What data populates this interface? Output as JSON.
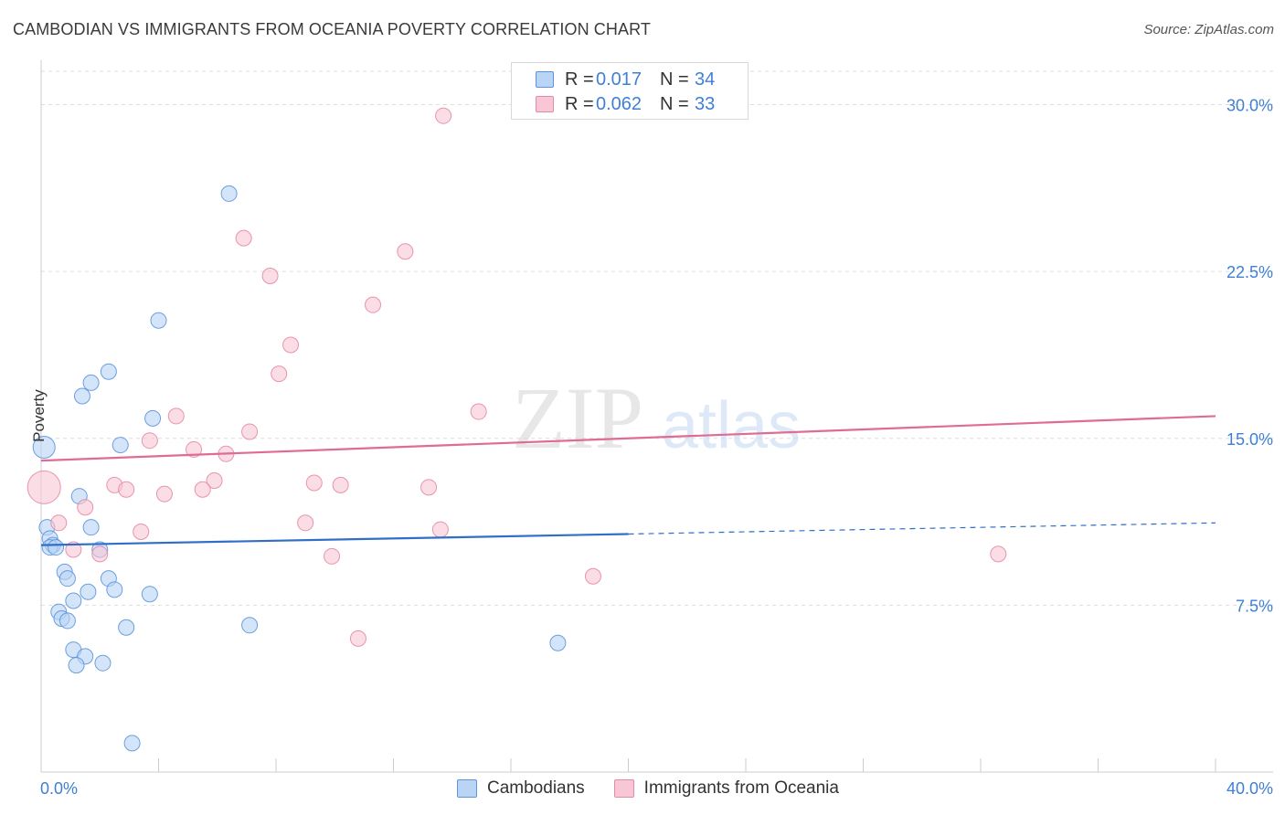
{
  "title": "CAMBODIAN VS IMMIGRANTS FROM OCEANIA POVERTY CORRELATION CHART",
  "source": "Source: ZipAtlas.com",
  "watermark": {
    "zip": "ZIP",
    "atlas": "atlas"
  },
  "legend_top": [
    {
      "r_label": "R =",
      "r_value": "0.017",
      "n_label": "N =",
      "n_value": "34"
    },
    {
      "r_label": "R =",
      "r_value": "0.062",
      "n_label": "N =",
      "n_value": "33"
    }
  ],
  "legend_bottom": [
    "Cambodians",
    "Immigrants from Oceania"
  ],
  "colors": {
    "blue_fill": "#b9d4f5",
    "blue_stroke": "#5d95dc",
    "blue_line": "#2f6fc8",
    "pink_fill": "#f8c6d4",
    "pink_stroke": "#e58aa6",
    "pink_line": "#e06b93",
    "grid": "#dddddd",
    "axis_text": "#3f7fd6"
  },
  "chart_data": {
    "type": "scatter",
    "title": "CAMBODIAN VS IMMIGRANTS FROM OCEANIA POVERTY CORRELATION CHART",
    "xlabel": "",
    "ylabel": "Poverty",
    "xlim": [
      0,
      40
    ],
    "ylim": [
      0,
      31.5
    ],
    "y_ticks": [
      7.5,
      15.0,
      22.5,
      30.0
    ],
    "y_tick_labels": [
      "7.5%",
      "15.0%",
      "22.5%",
      "30.0%"
    ],
    "x_tick_labels": [
      "0.0%",
      "40.0%"
    ],
    "series": [
      {
        "name": "Cambodians",
        "color": "blue",
        "points": [
          [
            6.4,
            26.0
          ],
          [
            4.0,
            20.3
          ],
          [
            2.3,
            18.0
          ],
          [
            1.7,
            17.5
          ],
          [
            1.4,
            16.9
          ],
          [
            3.8,
            15.9
          ],
          [
            0.1,
            14.6
          ],
          [
            2.7,
            14.7
          ],
          [
            1.3,
            12.4
          ],
          [
            0.2,
            11.0
          ],
          [
            1.7,
            11.0
          ],
          [
            0.3,
            10.5
          ],
          [
            0.4,
            10.2
          ],
          [
            0.3,
            10.1
          ],
          [
            0.5,
            10.1
          ],
          [
            2.0,
            10.0
          ],
          [
            0.8,
            9.0
          ],
          [
            0.9,
            8.7
          ],
          [
            2.3,
            8.7
          ],
          [
            2.5,
            8.2
          ],
          [
            1.6,
            8.1
          ],
          [
            3.7,
            8.0
          ],
          [
            1.1,
            7.7
          ],
          [
            0.6,
            7.2
          ],
          [
            0.7,
            6.9
          ],
          [
            0.9,
            6.8
          ],
          [
            2.9,
            6.5
          ],
          [
            7.1,
            6.6
          ],
          [
            17.6,
            5.8
          ],
          [
            1.1,
            5.5
          ],
          [
            1.5,
            5.2
          ],
          [
            2.1,
            4.9
          ],
          [
            1.2,
            4.8
          ],
          [
            3.1,
            1.3
          ]
        ]
      },
      {
        "name": "Immigrants from Oceania",
        "color": "pink",
        "points": [
          [
            13.7,
            29.5
          ],
          [
            6.9,
            24.0
          ],
          [
            12.4,
            23.4
          ],
          [
            7.8,
            22.3
          ],
          [
            11.3,
            21.0
          ],
          [
            8.5,
            19.2
          ],
          [
            8.1,
            17.9
          ],
          [
            14.9,
            16.2
          ],
          [
            4.6,
            16.0
          ],
          [
            3.7,
            14.9
          ],
          [
            7.1,
            15.3
          ],
          [
            5.2,
            14.5
          ],
          [
            6.3,
            14.3
          ],
          [
            0.1,
            12.8
          ],
          [
            5.9,
            13.1
          ],
          [
            2.5,
            12.9
          ],
          [
            9.3,
            13.0
          ],
          [
            10.2,
            12.9
          ],
          [
            13.2,
            12.8
          ],
          [
            2.9,
            12.7
          ],
          [
            5.5,
            12.7
          ],
          [
            4.2,
            12.5
          ],
          [
            1.5,
            11.9
          ],
          [
            0.6,
            11.2
          ],
          [
            9.0,
            11.2
          ],
          [
            13.6,
            10.9
          ],
          [
            3.4,
            10.8
          ],
          [
            1.1,
            10.0
          ],
          [
            2.0,
            9.8
          ],
          [
            9.9,
            9.7
          ],
          [
            32.6,
            9.8
          ],
          [
            18.8,
            8.8
          ],
          [
            10.8,
            6.0
          ]
        ]
      }
    ],
    "trend_lines": [
      {
        "series": "Cambodians",
        "x_start": 0,
        "y_start": 10.2,
        "x_end": 20,
        "y_end": 10.7,
        "dashed_to_x": 40,
        "dashed_to_y": 11.2
      },
      {
        "series": "Immigrants from Oceania",
        "x_start": 0,
        "y_start": 14.0,
        "x_end": 40,
        "y_end": 16.0
      }
    ],
    "large_points": [
      {
        "series": "Cambodians",
        "x": 0.1,
        "y": 14.6
      },
      {
        "series": "Immigrants from Oceania",
        "x": 0.1,
        "y": 12.8
      }
    ],
    "legend_position": "top-center",
    "grid": true
  }
}
